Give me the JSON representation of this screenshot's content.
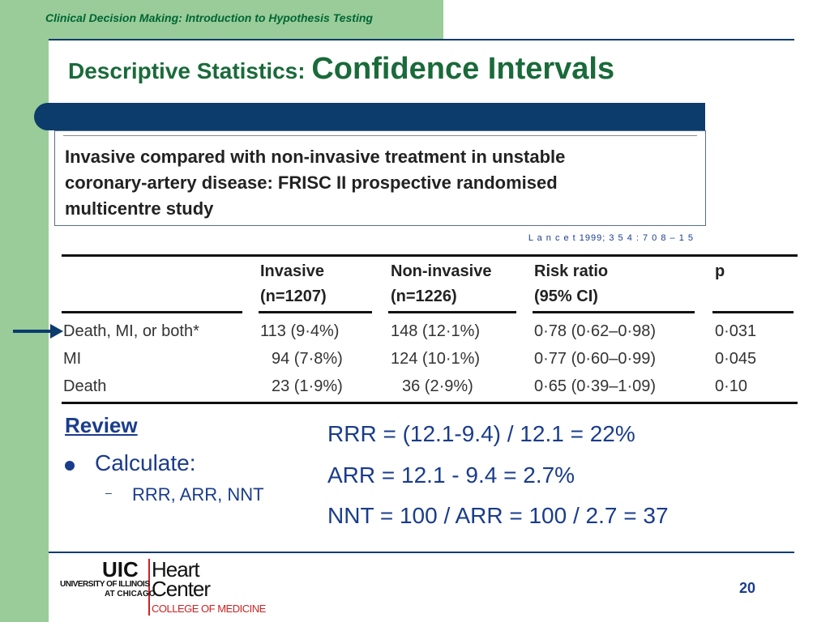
{
  "header": {
    "title": "Clinical Decision Making: Introduction to Hypothesis Testing"
  },
  "slide": {
    "title_part1": "Descriptive Statistics: ",
    "title_part2": "Confidence Intervals",
    "page_number": "20"
  },
  "study": {
    "line1": "Invasive compared with non-invasive treatment in unstable",
    "line2": "coronary-artery disease: FRISC II prospective randomised",
    "line3": "multicentre study",
    "citation": "L a n c e t 1999; 3 5 4 : 7 0 8 – 1 5"
  },
  "table": {
    "headers": [
      {
        "line1": "Invasive",
        "line2": "(n=1207)"
      },
      {
        "line1": "Non-invasive",
        "line2": "(n=1226)"
      },
      {
        "line1": "Risk ratio",
        "line2": "(95% CI)"
      },
      {
        "line1": "p",
        "line2": ""
      }
    ],
    "rows": [
      {
        "label": "Death, MI, or both*",
        "invasive": "113 (9·4%)",
        "noninvasive": "148 (12·1%)",
        "rr": "0·78 (0·62–0·98)",
        "p": "0·031"
      },
      {
        "label": "MI",
        "invasive": "94 (7·8%)",
        "noninvasive": "124 (10·1%)",
        "rr": "0·77 (0·60–0·99)",
        "p": "0·045"
      },
      {
        "label": "Death",
        "invasive": "23 (1·9%)",
        "noninvasive": "36 (2·9%)",
        "rr": "0·65 (0·39–1·09)",
        "p": "0·10"
      }
    ]
  },
  "review": {
    "heading": "Review",
    "bullet": "Calculate:",
    "sub_bullet": "RRR, ARR, NNT",
    "formulas": [
      "RRR = (12.1-9.4) / 12.1 = 22%",
      "ARR = 12.1 - 9.4 = 2.7%",
      "NNT = 100 / ARR = 100 / 2.7 = 37"
    ]
  },
  "logo": {
    "uic": "UIC",
    "heart": "Heart",
    "center": "Center",
    "university": "UNIVERSITY OF ILLINOIS",
    "at_chicago": "AT CHICAGO",
    "college": "COLLEGE OF MEDICINE"
  },
  "colors": {
    "title_green": "#1a6a3a",
    "navy": "#0c3c6c",
    "sidebar_green": "#99cc99",
    "text_blue": "#1a3c8c",
    "logo_red": "#cc2222"
  }
}
